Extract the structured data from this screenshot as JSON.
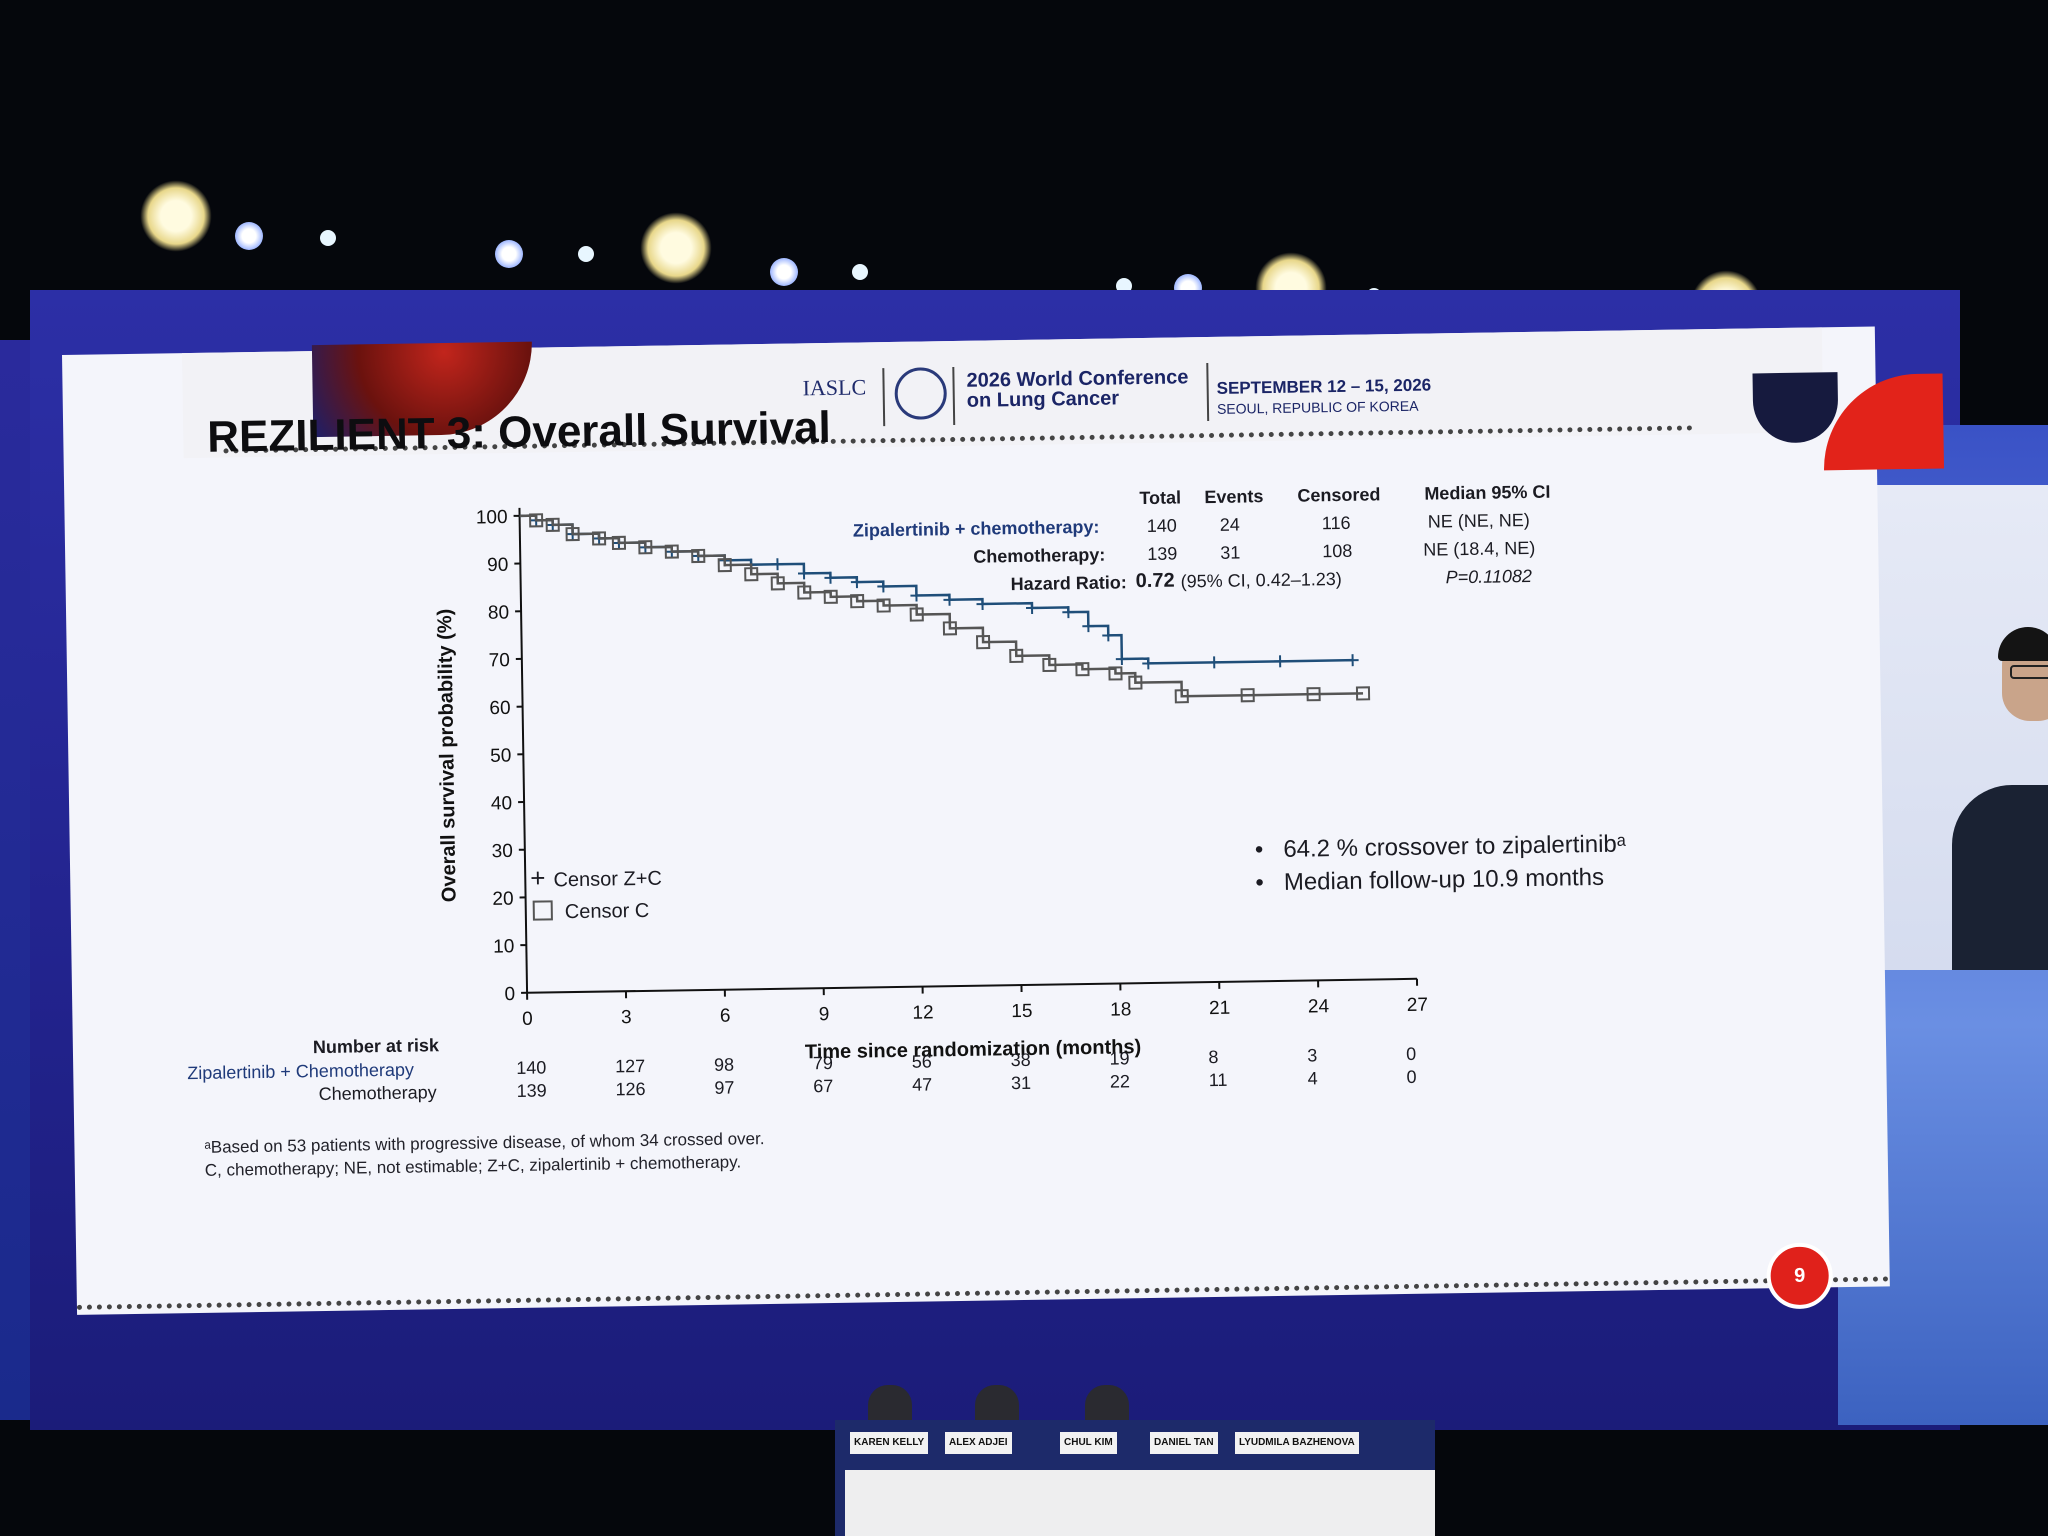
{
  "conference": {
    "org": "IASLC",
    "title_line1": "2026 World Conference",
    "title_line2": "on Lung Cancer",
    "dates": "SEPTEMBER 12 – 15, 2026",
    "location": "SEOUL, REPUBLIC OF KOREA"
  },
  "slide": {
    "title": "REZILIENT 3: Overall Survival",
    "page_number": "9"
  },
  "stats_table": {
    "headers": [
      "Total",
      "Events",
      "Censored",
      "Median 95% CI"
    ],
    "rows": [
      {
        "label": "Zipalertinib + chemotherapy:",
        "total": "140",
        "events": "24",
        "censored": "116",
        "median": "NE (NE, NE)"
      },
      {
        "label": "Chemotherapy:",
        "total": "139",
        "events": "31",
        "censored": "108",
        "median": "NE (18.4, NE)"
      }
    ],
    "hr_label": "Hazard Ratio:",
    "hr_value": "0.72",
    "hr_ci": "(95% CI, 0.42–1.23)",
    "p_value": "P=0.11082"
  },
  "legend": {
    "zc": "Censor Z+C",
    "c": "Censor C"
  },
  "bullets": [
    "64.2 % crossover to zipalertinibᵃ",
    "Median follow-up 10.9 months"
  ],
  "chart_data": {
    "type": "line",
    "xlabel": "Time since randomization (months)",
    "ylabel": "Overall survival probability (%)",
    "xlim": [
      0,
      27
    ],
    "ylim": [
      0,
      100
    ],
    "x_ticks": [
      "0",
      "3",
      "6",
      "9",
      "12",
      "15",
      "18",
      "21",
      "24",
      "27"
    ],
    "y_ticks": [
      "0",
      "10",
      "20",
      "30",
      "40",
      "50",
      "60",
      "70",
      "80",
      "90",
      "100"
    ],
    "series": [
      {
        "name": "Zipalertinib + chemotherapy",
        "color": "#1f4e79",
        "marker": "plus",
        "x": [
          0,
          0.5,
          1.0,
          1.6,
          2.4,
          3.0,
          3.8,
          4.6,
          5.4,
          6.2,
          7.0,
          7.8,
          8.6,
          9.4,
          10.2,
          11.0,
          12.0,
          13.0,
          14.0,
          15.5,
          16.6,
          17.2,
          17.8,
          18.2,
          19.0,
          21.0,
          23.0,
          25.2
        ],
        "y": [
          100,
          99,
          98,
          96,
          95,
          94,
          93,
          92,
          91,
          90,
          89,
          89,
          87,
          86,
          85,
          84,
          82,
          81,
          80,
          79,
          78,
          75,
          73,
          68,
          67,
          67,
          67,
          67
        ]
      },
      {
        "name": "Chemotherapy",
        "color": "#555555",
        "marker": "square",
        "x": [
          0,
          0.5,
          1.0,
          1.6,
          2.4,
          3.0,
          3.8,
          4.6,
          5.4,
          6.2,
          7.0,
          7.8,
          8.6,
          9.4,
          10.2,
          11.0,
          12.0,
          13.0,
          14.0,
          15.0,
          16.0,
          17.0,
          18.0,
          18.6,
          20.0,
          22.0,
          24.0,
          25.5
        ],
        "y": [
          100,
          99,
          98,
          96,
          95,
          94,
          93,
          92,
          91,
          89,
          87,
          85,
          83,
          82,
          81,
          80,
          78,
          75,
          72,
          69,
          67,
          66,
          65,
          63,
          60,
          60,
          60,
          60
        ]
      }
    ]
  },
  "risk_table": {
    "header": "Number at risk",
    "rows": [
      {
        "label": "Zipalertinib + Chemotherapy",
        "values": [
          "140",
          "127",
          "98",
          "79",
          "56",
          "38",
          "19",
          "8",
          "3",
          "0"
        ]
      },
      {
        "label": "Chemotherapy",
        "values": [
          "139",
          "126",
          "97",
          "67",
          "47",
          "31",
          "22",
          "11",
          "4",
          "0"
        ]
      }
    ]
  },
  "footnotes": [
    "ᵃBased on 53 patients with progressive disease, of whom 34 crossed over.",
    "C, chemotherapy; NE, not estimable; Z+C, zipalertinib + chemotherapy."
  ],
  "panel": {
    "nameplates": [
      "KAREN KELLY",
      "ALEX ADJEI",
      "CHUL KIM",
      "DANIEL TAN",
      "LYUDMILA BAZHENOVA"
    ]
  }
}
